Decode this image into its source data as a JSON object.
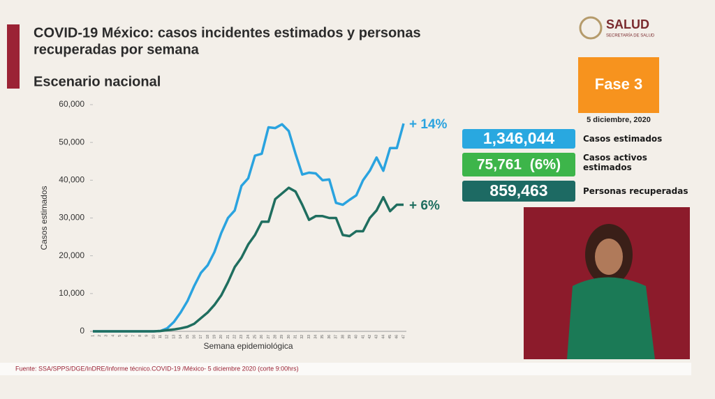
{
  "header": {
    "title_line1": "COVID-19 México: casos incidentes estimados y personas",
    "title_line2": "recuperadas por semana",
    "subtitle": "Escenario nacional",
    "logo": "SALUD",
    "logo_sub": "SECRETARÍA DE SALUD"
  },
  "chart_data": {
    "type": "line",
    "y_label": "Casos estimados",
    "x_label": "Semana epidemiológica",
    "categories": [
      "1",
      "2",
      "3",
      "4",
      "5",
      "6",
      "7",
      "8",
      "9",
      "10",
      "11",
      "12",
      "13",
      "14",
      "15",
      "16",
      "17",
      "18",
      "19",
      "20",
      "21",
      "22",
      "23",
      "24",
      "25",
      "26",
      "27",
      "28",
      "29",
      "30",
      "31",
      "32",
      "33",
      "34",
      "35",
      "36",
      "37",
      "38",
      "39",
      "40",
      "41",
      "42",
      "43",
      "44",
      "45",
      "46",
      "47"
    ],
    "series": [
      {
        "name": "Casos estimados",
        "color": "#2aa3df",
        "values": [
          0,
          0,
          0,
          0,
          0,
          0,
          0,
          0,
          0,
          0,
          100,
          800,
          2500,
          5000,
          8000,
          12000,
          15500,
          17500,
          21000,
          26000,
          30000,
          32000,
          38500,
          40500,
          46500,
          47000,
          54000,
          53800,
          54800,
          53000,
          47000,
          41500,
          42000,
          41800,
          40000,
          40200,
          34000,
          33500,
          34800,
          36000,
          40000,
          42500,
          46000,
          42500,
          48500,
          48500,
          55000
        ]
      },
      {
        "name": "Personas recuperadas",
        "color": "#1f6e5f",
        "values": [
          0,
          0,
          0,
          0,
          0,
          0,
          0,
          0,
          0,
          0,
          100,
          300,
          500,
          800,
          1200,
          2000,
          3500,
          5000,
          7000,
          9500,
          13000,
          17000,
          19500,
          23000,
          25500,
          29000,
          29000,
          35000,
          36500,
          38000,
          37000,
          33500,
          29500,
          30500,
          30500,
          30000,
          30000,
          25500,
          25200,
          26500,
          26500,
          30000,
          32000,
          35500,
          31800,
          33500,
          33500
        ]
      }
    ],
    "annotations": [
      "+ 14%",
      "+ 6%"
    ],
    "ylim": [
      0,
      60000
    ],
    "yticks": [
      0,
      {
        "value": 10000,
        "label": "10,000"
      },
      {
        "value": 20000,
        "label": "20,000"
      },
      {
        "value": 30000,
        "label": "30,000"
      },
      {
        "value": 40000,
        "label": "40,000"
      },
      {
        "value": 50000,
        "label": "50,000"
      },
      {
        "value": 60000,
        "label": "60,000"
      }
    ],
    "grid": false
  },
  "panel": {
    "phase": "Fase 3",
    "date": "5 diciembre, 2020",
    "stats": [
      {
        "value": "1,346,044",
        "label": "Casos estimados"
      },
      {
        "value": "75,761  (6%)",
        "label": "Casos activos estimados"
      },
      {
        "value": "859,463",
        "label": "Personas recuperadas"
      }
    ]
  },
  "footer": {
    "source": "Fuente: SSA/SPPS/DGE/InDRE/Informe técnico.COVID-19 /México- 5 diciembre 2020 (corte 9:00hrs)"
  }
}
